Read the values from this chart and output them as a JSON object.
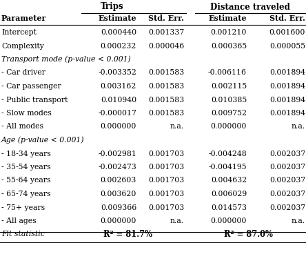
{
  "header_group1": "Trips",
  "header_group2": "Distance traveled",
  "col_headers": [
    "Parameter",
    "Estimate",
    "Std. Err.",
    "Estimate",
    "Std. Err."
  ],
  "rows": [
    {
      "type": "data",
      "label": "Intercept",
      "t_est": "0.000440",
      "t_se": "0.001337",
      "d_est": "0.001210",
      "d_se": "0.001600"
    },
    {
      "type": "data",
      "label": "Complexity",
      "t_est": "0.000232",
      "t_se": "0.000046",
      "d_est": "0.000365",
      "d_se": "0.000055"
    },
    {
      "type": "section",
      "label": "Transport mode (p-value < 0.001)"
    },
    {
      "type": "data",
      "label": "- Car driver",
      "t_est": "-0.003352",
      "t_se": "0.001583",
      "d_est": "-0.006116",
      "d_se": "0.001894"
    },
    {
      "type": "data",
      "label": "- Car passenger",
      "t_est": "0.003162",
      "t_se": "0.001583",
      "d_est": "0.002115",
      "d_se": "0.001894"
    },
    {
      "type": "data",
      "label": "- Public transport",
      "t_est": "0.010940",
      "t_se": "0.001583",
      "d_est": "0.010385",
      "d_se": "0.001894"
    },
    {
      "type": "data",
      "label": "- Slow modes",
      "t_est": "-0.000017",
      "t_se": "0.001583",
      "d_est": "0.009752",
      "d_se": "0.001894"
    },
    {
      "type": "data",
      "label": "- All modes",
      "t_est": "0.000000",
      "t_se": "n.a.",
      "d_est": "0.000000",
      "d_se": "n.a."
    },
    {
      "type": "section",
      "label": "Age (p-value < 0.001)"
    },
    {
      "type": "data",
      "label": "- 18-34 years",
      "t_est": "-0.002981",
      "t_se": "0.001703",
      "d_est": "-0.004248",
      "d_se": "0.002037"
    },
    {
      "type": "data",
      "label": "- 35-54 years",
      "t_est": "-0.002473",
      "t_se": "0.001703",
      "d_est": "-0.004195",
      "d_se": "0.002037"
    },
    {
      "type": "data",
      "label": "- 55-64 years",
      "t_est": "0.002603",
      "t_se": "0.001703",
      "d_est": "0.004632",
      "d_se": "0.002037"
    },
    {
      "type": "data",
      "label": "- 65-74 years",
      "t_est": "0.003620",
      "t_se": "0.001703",
      "d_est": "0.006029",
      "d_se": "0.002037"
    },
    {
      "type": "data",
      "label": "- 75+ years",
      "t_est": "0.009366",
      "t_se": "0.001703",
      "d_est": "0.014573",
      "d_se": "0.002037"
    },
    {
      "type": "data",
      "label": "- All ages",
      "t_est": "0.000000",
      "t_se": "n.a.",
      "d_est": "0.000000",
      "d_se": "n.a."
    },
    {
      "type": "fit",
      "label": "Fit statistic",
      "t_val": "R² = 81.7%",
      "d_val": "R² = 87.0%"
    }
  ],
  "bg_color": "#ffffff",
  "text_color": "#000000"
}
